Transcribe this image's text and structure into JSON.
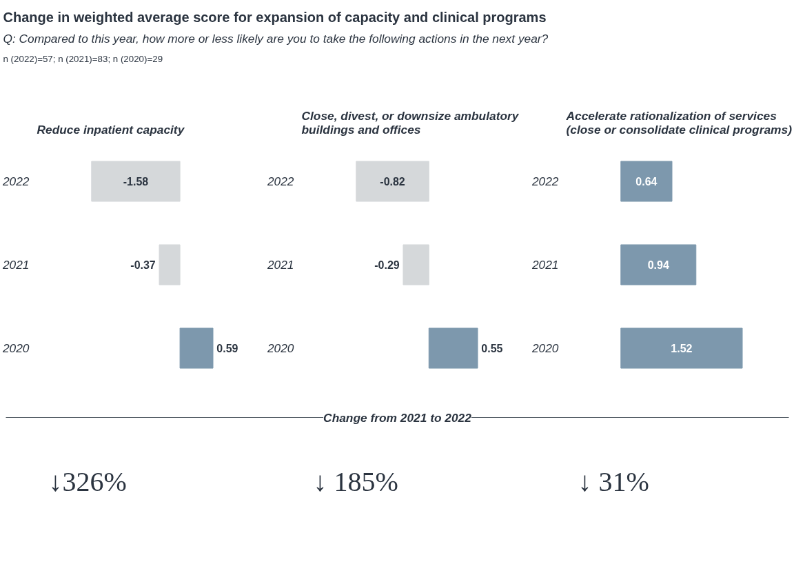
{
  "chart_data": [
    {
      "type": "other",
      "title": "Change in weighted average score for expansion of capacity and clinical programs",
      "subtitle": "Q: Compared to this year, how more or less likely are you to take the following actions in the next year?",
      "annotations": [
        "n (2022)=57;  n (2021)=83;  n (2020)=29",
        "Change from 2021 to 2022"
      ]
    },
    {
      "type": "bar",
      "orientation": "horizontal",
      "title": "Reduce inpatient capacity",
      "categories": [
        "2022",
        "2021",
        "2020"
      ],
      "values": [
        -1.58,
        -0.37,
        0.59
      ],
      "colors": [
        "#d5d8da",
        "#d5d8da",
        "#7d98ad"
      ],
      "data_labels": true,
      "annotations": [
        "↓326%"
      ]
    },
    {
      "type": "bar",
      "orientation": "horizontal",
      "title": "Close, divest, or downsize ambulatory buildings and offices",
      "categories": [
        "2022",
        "2021",
        "2020"
      ],
      "values": [
        -0.82,
        -0.29,
        0.55
      ],
      "colors": [
        "#d5d8da",
        "#d5d8da",
        "#7d98ad"
      ],
      "data_labels": true,
      "annotations": [
        "↓ 185%"
      ]
    },
    {
      "type": "bar",
      "orientation": "horizontal",
      "title": "Accelerate rationalization of services (close or consolidate clinical programs)",
      "categories": [
        "2022",
        "2021",
        "2020"
      ],
      "values": [
        0.64,
        0.94,
        1.52
      ],
      "colors": [
        "#7d98ad",
        "#7d98ad",
        "#7d98ad"
      ],
      "data_labels": true,
      "annotations": [
        "↓ 31%"
      ]
    }
  ]
}
